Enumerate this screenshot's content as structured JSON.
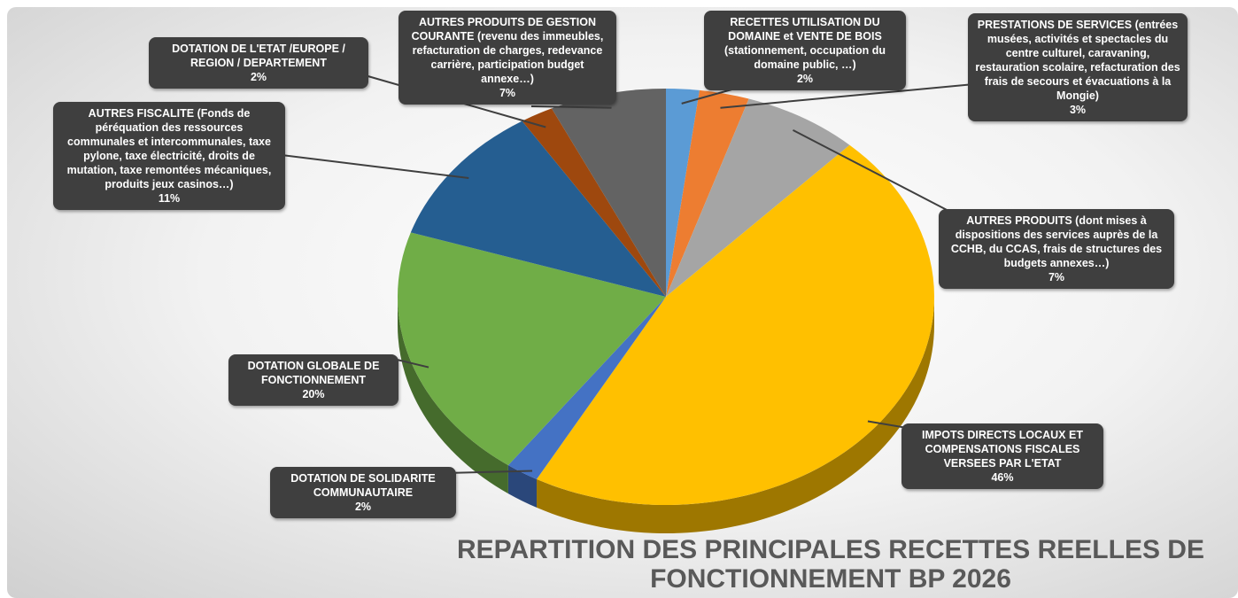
{
  "chart_data": {
    "type": "pie",
    "title": "REPARTITION DES PRINCIPALES RECETTES REELLES DE FONCTIONNEMENT BP 2026",
    "categories": [
      "RECETTES UTILISATION DU DOMAINE et VENTE DE BOIS (stationnement, occupation du domaine public, …)",
      "PRESTATIONS DE SERVICES (entrées musées, activités et spectacles du centre culturel, caravaning, restauration scolaire, refacturation des frais de secours et évacuations à la Mongie)",
      "AUTRES PRODUITS (dont mises à dispositions des services auprès de la CCHB, du CCAS, frais de structures des budgets annexes…)",
      "IMPOTS DIRECTS LOCAUX ET COMPENSATIONS FISCALES VERSEES PAR L'ETAT",
      "DOTATION DE SOLIDARITE COMMUNAUTAIRE",
      "DOTATION GLOBALE DE FONCTIONNEMENT",
      "AUTRES FISCALITE (Fonds de péréquation des ressources communales et intercommunales, taxe pylone, taxe électricité, droits de mutation, taxe remontées mécaniques, produits jeux casinos…)",
      "DOTATION DE L'ETAT /EUROPE / REGION / DEPARTEMENT",
      "AUTRES PRODUITS DE GESTION COURANTE (revenu des immeubles, refacturation de charges, redevance carrière, participation budget annexe…)"
    ],
    "values": [
      2,
      3,
      7,
      46,
      2,
      20,
      11,
      2,
      7
    ],
    "value_labels": [
      "2%",
      "3%",
      "7%",
      "46%",
      "2%",
      "20%",
      "11%",
      "2%",
      "7%"
    ],
    "colors": [
      "#5b9bd5",
      "#ed7d31",
      "#a5a5a5",
      "#ffc000",
      "#4472c4",
      "#70ad47",
      "#255e91",
      "#9e480e",
      "#636363"
    ]
  }
}
